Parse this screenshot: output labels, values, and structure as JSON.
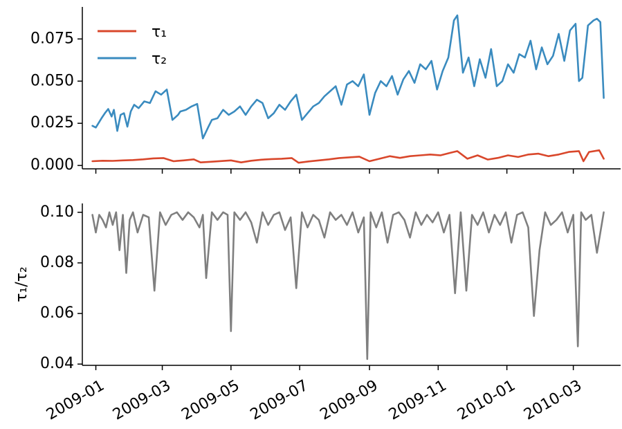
{
  "chart_data": [
    {
      "type": "line",
      "title": "",
      "xlabel": "",
      "ylabel": "",
      "ylim": [
        -0.002,
        0.094
      ],
      "yticks": [
        "0.000",
        "0.025",
        "0.050",
        "0.075"
      ],
      "ytick_values": [
        0,
        0.025,
        0.05,
        0.075
      ],
      "xlim": [
        "2008-12-20",
        "2010-04-12"
      ],
      "xtick_dates": [
        "2009-01-01",
        "2009-03-01",
        "2009-05-01",
        "2009-07-01",
        "2009-09-01",
        "2009-11-01",
        "2010-01-01",
        "2010-03-01"
      ],
      "xtick_labels_shown": false,
      "legend": {
        "placement": "top-left",
        "entries": [
          "τ₁",
          "τ₂"
        ]
      },
      "series": [
        {
          "name": "τ₁",
          "color": "#d9472b",
          "x": [
            "2008-12-29",
            "2009-01-07",
            "2009-01-16",
            "2009-01-25",
            "2009-02-03",
            "2009-02-12",
            "2009-02-21",
            "2009-03-02",
            "2009-03-11",
            "2009-03-20",
            "2009-03-29",
            "2009-04-04",
            "2009-04-13",
            "2009-04-22",
            "2009-05-01",
            "2009-05-10",
            "2009-05-19",
            "2009-05-28",
            "2009-06-06",
            "2009-06-15",
            "2009-06-24",
            "2009-06-30",
            "2009-07-09",
            "2009-07-18",
            "2009-07-27",
            "2009-08-05",
            "2009-08-14",
            "2009-08-23",
            "2009-09-01",
            "2009-09-10",
            "2009-09-19",
            "2009-09-28",
            "2009-10-07",
            "2009-10-16",
            "2009-10-25",
            "2009-11-03",
            "2009-11-12",
            "2009-11-18",
            "2009-11-27",
            "2009-12-06",
            "2009-12-15",
            "2009-12-24",
            "2010-01-02",
            "2010-01-11",
            "2010-01-20",
            "2010-01-29",
            "2010-02-07",
            "2010-02-16",
            "2010-02-25",
            "2010-03-06",
            "2010-03-10",
            "2010-03-15",
            "2010-03-24",
            "2010-03-28"
          ],
          "y": [
            0.0025,
            0.0028,
            0.0027,
            0.003,
            0.0032,
            0.0036,
            0.0042,
            0.0044,
            0.0025,
            0.003,
            0.0036,
            0.0018,
            0.0022,
            0.0026,
            0.003,
            0.0018,
            0.0028,
            0.0034,
            0.0038,
            0.004,
            0.0044,
            0.0016,
            0.0024,
            0.003,
            0.0036,
            0.0044,
            0.0048,
            0.0052,
            0.0025,
            0.004,
            0.0055,
            0.0045,
            0.0055,
            0.006,
            0.0065,
            0.006,
            0.0075,
            0.0085,
            0.004,
            0.006,
            0.0035,
            0.0045,
            0.006,
            0.005,
            0.0065,
            0.007,
            0.0055,
            0.0065,
            0.008,
            0.0085,
            0.0025,
            0.008,
            0.009,
            0.004
          ]
        },
        {
          "name": "τ₂",
          "color": "#3a8bbf",
          "x": [
            "2008-12-29",
            "2009-01-01",
            "2009-01-06",
            "2009-01-09",
            "2009-01-12",
            "2009-01-15",
            "2009-01-17",
            "2009-01-20",
            "2009-01-23",
            "2009-01-26",
            "2009-01-29",
            "2009-02-01",
            "2009-02-04",
            "2009-02-08",
            "2009-02-13",
            "2009-02-18",
            "2009-02-23",
            "2009-02-28",
            "2009-03-05",
            "2009-03-10",
            "2009-03-15",
            "2009-03-17",
            "2009-03-22",
            "2009-03-27",
            "2009-04-01",
            "2009-04-06",
            "2009-04-11",
            "2009-04-14",
            "2009-04-19",
            "2009-04-24",
            "2009-04-29",
            "2009-05-04",
            "2009-05-09",
            "2009-05-14",
            "2009-05-19",
            "2009-05-24",
            "2009-05-29",
            "2009-06-03",
            "2009-06-08",
            "2009-06-13",
            "2009-06-18",
            "2009-06-23",
            "2009-06-28",
            "2009-07-03",
            "2009-07-08",
            "2009-07-13",
            "2009-07-18",
            "2009-07-23",
            "2009-07-28",
            "2009-08-02",
            "2009-08-07",
            "2009-08-12",
            "2009-08-17",
            "2009-08-22",
            "2009-08-27",
            "2009-09-01",
            "2009-09-06",
            "2009-09-11",
            "2009-09-16",
            "2009-09-21",
            "2009-09-26",
            "2009-10-01",
            "2009-10-06",
            "2009-10-11",
            "2009-10-16",
            "2009-10-21",
            "2009-10-26",
            "2009-10-31",
            "2009-11-05",
            "2009-11-10",
            "2009-11-15",
            "2009-11-18",
            "2009-11-23",
            "2009-11-28",
            "2009-12-03",
            "2009-12-08",
            "2009-12-13",
            "2009-12-18",
            "2009-12-23",
            "2009-12-28",
            "2010-01-02",
            "2010-01-07",
            "2010-01-12",
            "2010-01-17",
            "2010-01-22",
            "2010-01-27",
            "2010-02-01",
            "2010-02-06",
            "2010-02-11",
            "2010-02-16",
            "2010-02-21",
            "2010-02-26",
            "2010-03-03",
            "2010-03-06",
            "2010-03-09",
            "2010-03-14",
            "2010-03-19",
            "2010-03-22",
            "2010-03-25",
            "2010-03-28"
          ],
          "y": [
            0.0235,
            0.0225,
            0.028,
            0.031,
            0.0335,
            0.029,
            0.033,
            0.0205,
            0.03,
            0.031,
            0.023,
            0.032,
            0.036,
            0.034,
            0.038,
            0.037,
            0.044,
            0.042,
            0.045,
            0.027,
            0.03,
            0.032,
            0.033,
            0.035,
            0.0365,
            0.016,
            0.023,
            0.027,
            0.028,
            0.033,
            0.03,
            0.032,
            0.035,
            0.03,
            0.035,
            0.039,
            0.037,
            0.028,
            0.031,
            0.036,
            0.033,
            0.038,
            0.042,
            0.027,
            0.031,
            0.035,
            0.037,
            0.041,
            0.044,
            0.047,
            0.036,
            0.048,
            0.05,
            0.047,
            0.054,
            0.03,
            0.043,
            0.05,
            0.047,
            0.053,
            0.042,
            0.051,
            0.056,
            0.049,
            0.06,
            0.057,
            0.062,
            0.045,
            0.056,
            0.064,
            0.086,
            0.089,
            0.055,
            0.064,
            0.047,
            0.063,
            0.052,
            0.069,
            0.047,
            0.05,
            0.06,
            0.055,
            0.066,
            0.064,
            0.074,
            0.057,
            0.07,
            0.06,
            0.065,
            0.078,
            0.062,
            0.08,
            0.084,
            0.05,
            0.052,
            0.083,
            0.086,
            0.087,
            0.085,
            0.04
          ]
        }
      ]
    },
    {
      "type": "line",
      "title": "",
      "xlabel": "",
      "ylabel": "τ₁/τ₂",
      "ylim": [
        0.0395,
        0.1035
      ],
      "yticks": [
        "0.04",
        "0.06",
        "0.08",
        "0.10"
      ],
      "ytick_values": [
        0.04,
        0.06,
        0.08,
        0.1
      ],
      "xlim": [
        "2008-12-20",
        "2010-04-12"
      ],
      "xtick_dates": [
        "2009-01-01",
        "2009-03-01",
        "2009-05-01",
        "2009-07-01",
        "2009-09-01",
        "2009-11-01",
        "2010-01-01",
        "2010-03-01"
      ],
      "xtick_labels": [
        "2009-01",
        "2009-03",
        "2009-05",
        "2009-07",
        "2009-09",
        "2009-11",
        "2010-01",
        "2010-03"
      ],
      "series": [
        {
          "name": "",
          "color": "#7f7f7f",
          "x": [
            "2008-12-29",
            "2009-01-01",
            "2009-01-04",
            "2009-01-07",
            "2009-01-10",
            "2009-01-13",
            "2009-01-16",
            "2009-01-19",
            "2009-01-22",
            "2009-01-25",
            "2009-01-28",
            "2009-01-31",
            "2009-02-03",
            "2009-02-07",
            "2009-02-12",
            "2009-02-17",
            "2009-02-22",
            "2009-02-27",
            "2009-03-04",
            "2009-03-09",
            "2009-03-14",
            "2009-03-19",
            "2009-03-24",
            "2009-03-29",
            "2009-04-03",
            "2009-04-06",
            "2009-04-09",
            "2009-04-14",
            "2009-04-19",
            "2009-04-24",
            "2009-04-28",
            "2009-05-01",
            "2009-05-04",
            "2009-05-09",
            "2009-05-14",
            "2009-05-19",
            "2009-05-24",
            "2009-05-29",
            "2009-06-03",
            "2009-06-08",
            "2009-06-13",
            "2009-06-18",
            "2009-06-23",
            "2009-06-28",
            "2009-07-03",
            "2009-07-08",
            "2009-07-13",
            "2009-07-18",
            "2009-07-23",
            "2009-07-28",
            "2009-08-02",
            "2009-08-07",
            "2009-08-12",
            "2009-08-17",
            "2009-08-22",
            "2009-08-27",
            "2009-08-30",
            "2009-09-02",
            "2009-09-07",
            "2009-09-12",
            "2009-09-17",
            "2009-09-22",
            "2009-09-27",
            "2009-10-02",
            "2009-10-07",
            "2009-10-12",
            "2009-10-17",
            "2009-10-22",
            "2009-10-27",
            "2009-11-01",
            "2009-11-06",
            "2009-11-11",
            "2009-11-16",
            "2009-11-21",
            "2009-11-26",
            "2009-12-01",
            "2009-12-06",
            "2009-12-11",
            "2009-12-16",
            "2009-12-21",
            "2009-12-26",
            "2009-12-31",
            "2010-01-05",
            "2010-01-10",
            "2010-01-15",
            "2010-01-20",
            "2010-01-25",
            "2010-01-30",
            "2010-02-04",
            "2010-02-09",
            "2010-02-14",
            "2010-02-19",
            "2010-02-24",
            "2010-03-01",
            "2010-03-05",
            "2010-03-08",
            "2010-03-12",
            "2010-03-17",
            "2010-03-22",
            "2010-03-28"
          ],
          "y": [
            0.099,
            0.092,
            0.099,
            0.097,
            0.094,
            0.1,
            0.095,
            0.1,
            0.085,
            0.099,
            0.076,
            0.097,
            0.1,
            0.092,
            0.099,
            0.098,
            0.069,
            0.1,
            0.095,
            0.099,
            0.1,
            0.097,
            0.1,
            0.098,
            0.094,
            0.099,
            0.074,
            0.1,
            0.097,
            0.1,
            0.099,
            0.053,
            0.1,
            0.097,
            0.1,
            0.096,
            0.088,
            0.1,
            0.095,
            0.099,
            0.1,
            0.093,
            0.098,
            0.07,
            0.1,
            0.094,
            0.099,
            0.097,
            0.09,
            0.1,
            0.097,
            0.099,
            0.095,
            0.1,
            0.092,
            0.098,
            0.042,
            0.1,
            0.094,
            0.1,
            0.088,
            0.099,
            0.1,
            0.097,
            0.09,
            0.1,
            0.095,
            0.099,
            0.096,
            0.1,
            0.092,
            0.099,
            0.068,
            0.1,
            0.069,
            0.099,
            0.095,
            0.1,
            0.092,
            0.099,
            0.095,
            0.1,
            0.088,
            0.099,
            0.1,
            0.094,
            0.059,
            0.085,
            0.1,
            0.095,
            0.097,
            0.1,
            0.092,
            0.099,
            0.047,
            0.1,
            0.097,
            0.099,
            0.084,
            0.1
          ]
        }
      ]
    }
  ]
}
